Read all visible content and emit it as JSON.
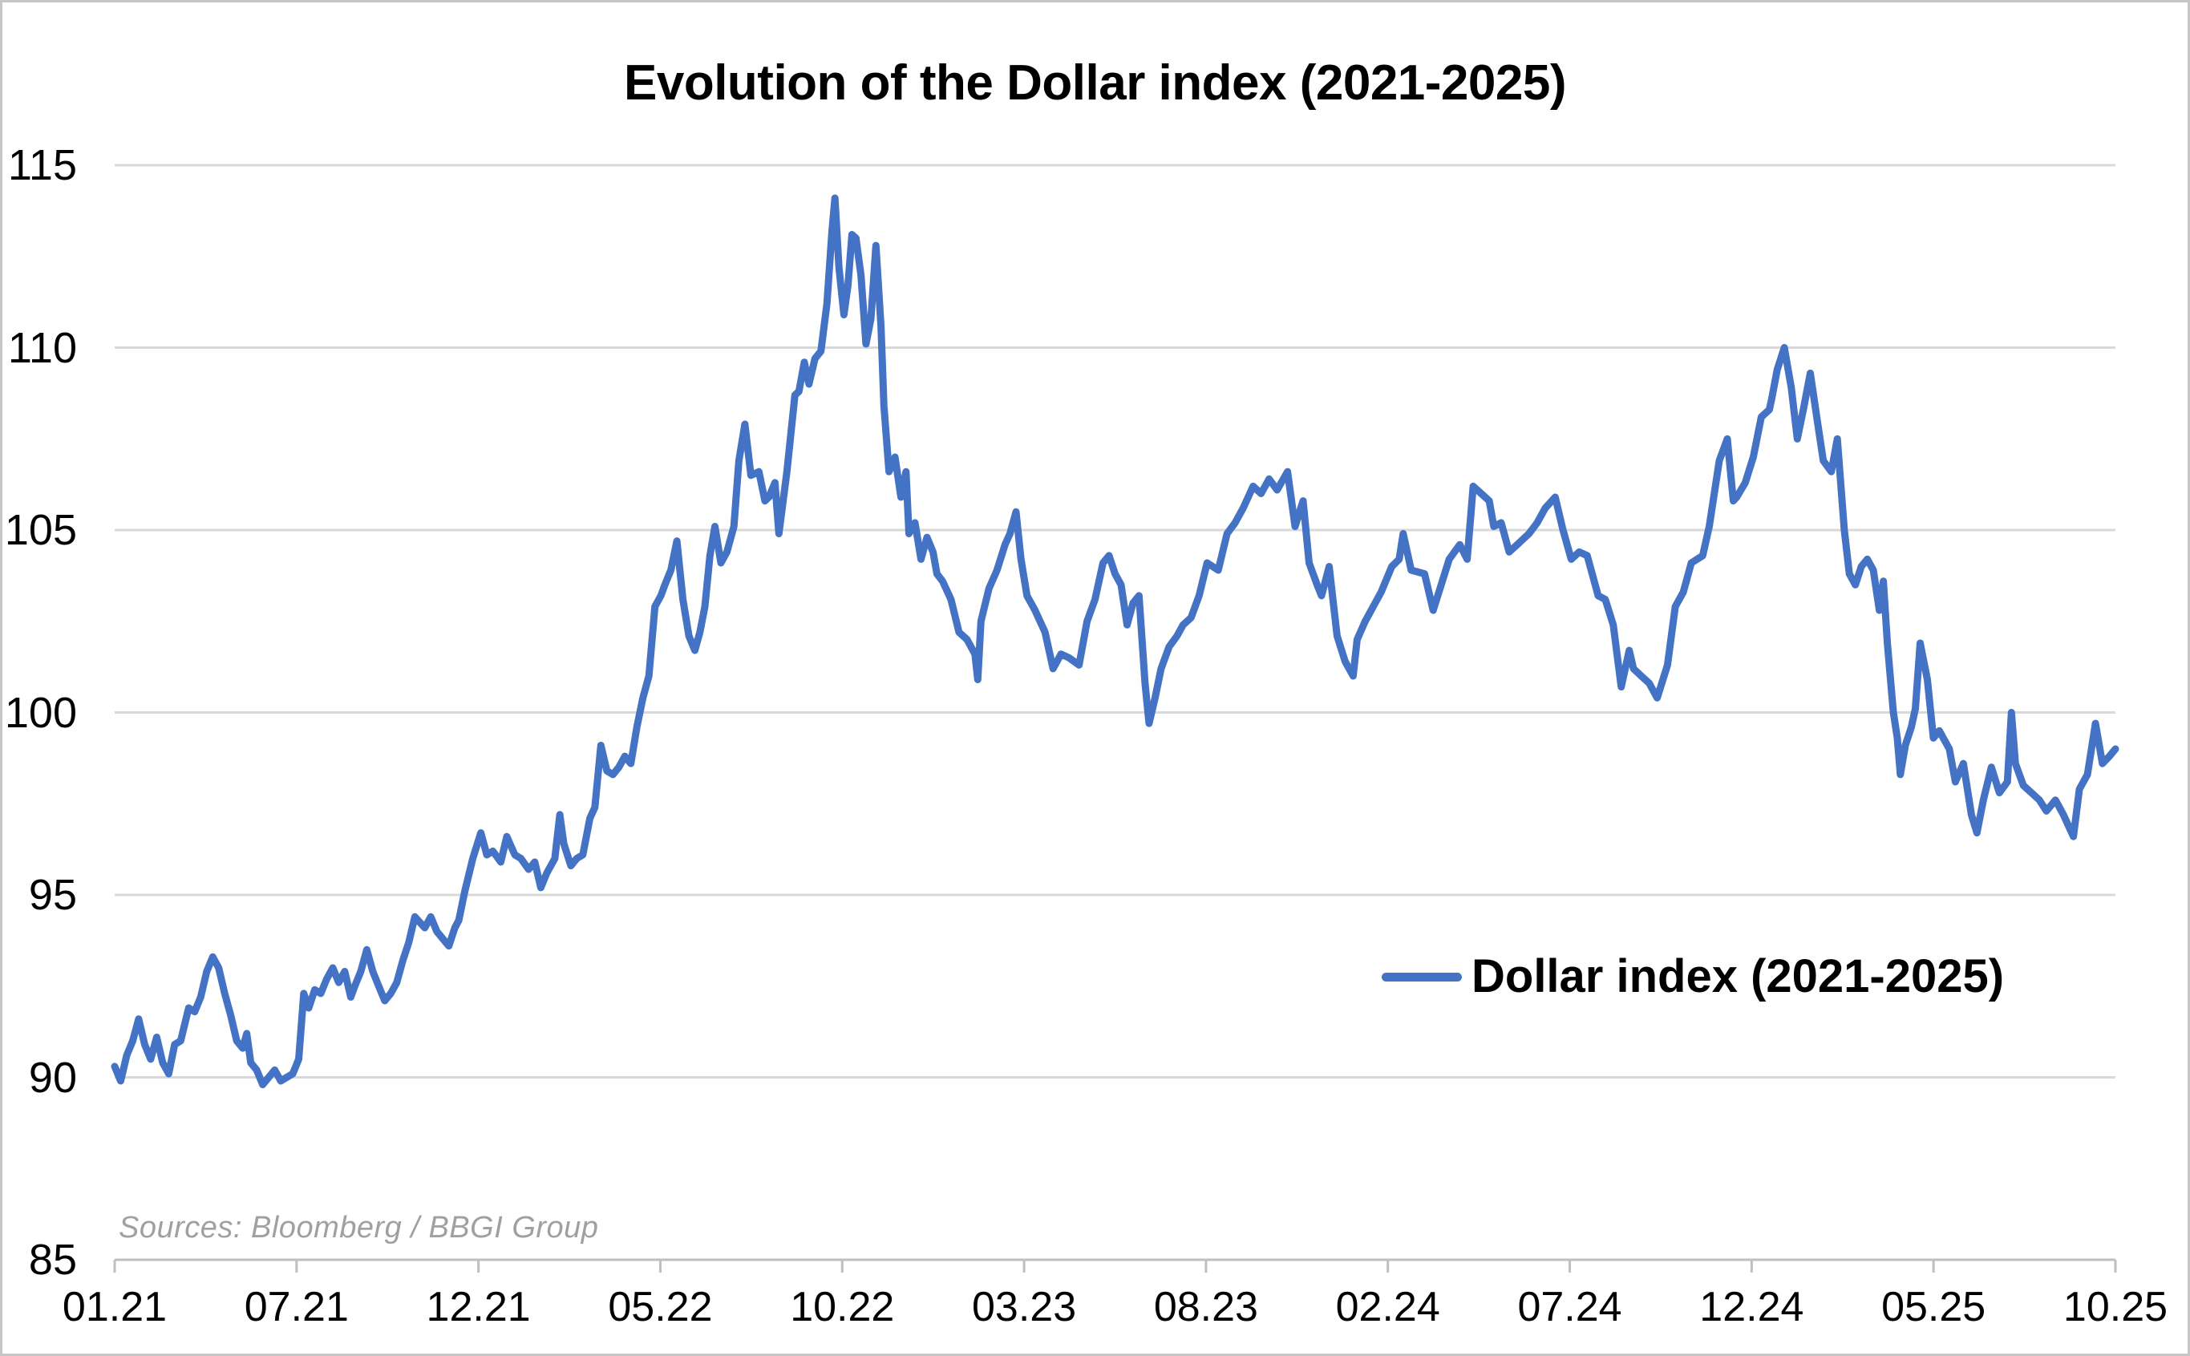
{
  "chart_data": {
    "type": "line",
    "title": "Evolution of the Dollar index (2021-2025)",
    "source_note": "Sources: Bloomberg / BBGI Group",
    "xlabel": "",
    "ylabel": "",
    "ylim": [
      85,
      115
    ],
    "y_ticks": [
      115,
      110,
      105,
      100,
      95,
      90,
      85
    ],
    "x_tick_labels": [
      "01.21",
      "07.21",
      "12.21",
      "05.22",
      "10.22",
      "03.23",
      "08.23",
      "02.24",
      "07.24",
      "12.24",
      "05.25",
      "10.25"
    ],
    "grid": "horizontal",
    "legend_position": "center-right",
    "legend_entries": [
      "Dollar index (2021-2025)"
    ],
    "colors": {
      "line": "#4472C4",
      "gridline": "#d9d9d9",
      "axis": "#bfbfbf",
      "text": "#000000",
      "source_text": "#a0a0a0"
    },
    "series": [
      {
        "name": "Dollar index (2021-2025)",
        "color": "#4472C4",
        "points_format": "[fraction_of_x_axis, index_value]",
        "points": [
          [
            0.0,
            90.3
          ],
          [
            0.003,
            89.9
          ],
          [
            0.006,
            90.6
          ],
          [
            0.009,
            91.0
          ],
          [
            0.012,
            91.6
          ],
          [
            0.015,
            90.9
          ],
          [
            0.018,
            90.5
          ],
          [
            0.021,
            91.1
          ],
          [
            0.024,
            90.4
          ],
          [
            0.027,
            90.1
          ],
          [
            0.03,
            90.9
          ],
          [
            0.033,
            91.0
          ],
          [
            0.037,
            91.9
          ],
          [
            0.04,
            91.8
          ],
          [
            0.043,
            92.2
          ],
          [
            0.046,
            92.9
          ],
          [
            0.049,
            93.3
          ],
          [
            0.052,
            93.0
          ],
          [
            0.055,
            92.3
          ],
          [
            0.058,
            91.7
          ],
          [
            0.061,
            91.0
          ],
          [
            0.064,
            90.8
          ],
          [
            0.066,
            91.2
          ],
          [
            0.068,
            90.4
          ],
          [
            0.071,
            90.2
          ],
          [
            0.074,
            89.8
          ],
          [
            0.077,
            90.0
          ],
          [
            0.08,
            90.2
          ],
          [
            0.083,
            89.9
          ],
          [
            0.086,
            90.0
          ],
          [
            0.089,
            90.1
          ],
          [
            0.092,
            90.5
          ],
          [
            0.0945,
            92.3
          ],
          [
            0.097,
            91.9
          ],
          [
            0.1,
            92.4
          ],
          [
            0.103,
            92.3
          ],
          [
            0.106,
            92.7
          ],
          [
            0.109,
            93.0
          ],
          [
            0.112,
            92.6
          ],
          [
            0.115,
            92.9
          ],
          [
            0.118,
            92.2
          ],
          [
            0.12,
            92.5
          ],
          [
            0.123,
            92.9
          ],
          [
            0.126,
            93.5
          ],
          [
            0.129,
            92.9
          ],
          [
            0.132,
            92.5
          ],
          [
            0.135,
            92.1
          ],
          [
            0.138,
            92.3
          ],
          [
            0.141,
            92.6
          ],
          [
            0.144,
            93.2
          ],
          [
            0.147,
            93.7
          ],
          [
            0.15,
            94.4
          ],
          [
            0.155,
            94.1
          ],
          [
            0.158,
            94.4
          ],
          [
            0.161,
            94.0
          ],
          [
            0.164,
            93.8
          ],
          [
            0.167,
            93.6
          ],
          [
            0.17,
            94.1
          ],
          [
            0.172,
            94.3
          ],
          [
            0.175,
            95.1
          ],
          [
            0.179,
            96.0
          ],
          [
            0.183,
            96.7
          ],
          [
            0.186,
            96.1
          ],
          [
            0.189,
            96.2
          ],
          [
            0.193,
            95.9
          ],
          [
            0.196,
            96.6
          ],
          [
            0.2,
            96.1
          ],
          [
            0.203,
            96.0
          ],
          [
            0.2069,
            95.7
          ],
          [
            0.21,
            95.9
          ],
          [
            0.213,
            95.2
          ],
          [
            0.216,
            95.6
          ],
          [
            0.22,
            96.0
          ],
          [
            0.2225,
            97.2
          ],
          [
            0.2245,
            96.4
          ],
          [
            0.228,
            95.8
          ],
          [
            0.231,
            96.0
          ],
          [
            0.234,
            96.1
          ],
          [
            0.2375,
            97.1
          ],
          [
            0.24,
            97.4
          ],
          [
            0.243,
            99.1
          ],
          [
            0.246,
            98.4
          ],
          [
            0.249,
            98.3
          ],
          [
            0.252,
            98.5
          ],
          [
            0.255,
            98.8
          ],
          [
            0.258,
            98.6
          ],
          [
            0.261,
            99.6
          ],
          [
            0.264,
            100.4
          ],
          [
            0.267,
            101.0
          ],
          [
            0.27,
            102.9
          ],
          [
            0.273,
            103.2
          ],
          [
            0.275,
            103.5
          ],
          [
            0.278,
            103.9
          ],
          [
            0.281,
            104.7
          ],
          [
            0.284,
            103.1
          ],
          [
            0.287,
            102.1
          ],
          [
            0.29,
            101.7
          ],
          [
            0.2925,
            102.2
          ],
          [
            0.295,
            102.9
          ],
          [
            0.2975,
            104.3
          ],
          [
            0.3,
            105.1
          ],
          [
            0.303,
            104.1
          ],
          [
            0.306,
            104.4
          ],
          [
            0.3095,
            105.1
          ],
          [
            0.312,
            106.9
          ],
          [
            0.315,
            107.9
          ],
          [
            0.318,
            106.5
          ],
          [
            0.322,
            106.6
          ],
          [
            0.325,
            105.8
          ],
          [
            0.327,
            105.9
          ],
          [
            0.33,
            106.3
          ],
          [
            0.332,
            104.9
          ],
          [
            0.336,
            106.6
          ],
          [
            0.34,
            108.7
          ],
          [
            0.342,
            108.8
          ],
          [
            0.3447,
            109.6
          ],
          [
            0.347,
            109.0
          ],
          [
            0.35,
            109.7
          ],
          [
            0.353,
            109.9
          ],
          [
            0.356,
            111.2
          ],
          [
            0.3585,
            113.2
          ],
          [
            0.36,
            114.1
          ],
          [
            0.362,
            112.2
          ],
          [
            0.3645,
            110.9
          ],
          [
            0.3665,
            111.7
          ],
          [
            0.3685,
            113.1
          ],
          [
            0.3705,
            113.0
          ],
          [
            0.373,
            112.0
          ],
          [
            0.3755,
            110.1
          ],
          [
            0.378,
            110.8
          ],
          [
            0.3805,
            112.8
          ],
          [
            0.383,
            110.6
          ],
          [
            0.3845,
            108.4
          ],
          [
            0.387,
            106.6
          ],
          [
            0.39,
            107.0
          ],
          [
            0.393,
            105.9
          ],
          [
            0.3955,
            106.6
          ],
          [
            0.397,
            104.9
          ],
          [
            0.4,
            105.2
          ],
          [
            0.403,
            104.2
          ],
          [
            0.406,
            104.8
          ],
          [
            0.409,
            104.4
          ],
          [
            0.411,
            103.8
          ],
          [
            0.4138,
            103.6
          ],
          [
            0.418,
            103.1
          ],
          [
            0.422,
            102.2
          ],
          [
            0.426,
            102.0
          ],
          [
            0.43,
            101.6
          ],
          [
            0.4314,
            100.9
          ],
          [
            0.433,
            102.5
          ],
          [
            0.437,
            103.4
          ],
          [
            0.441,
            103.9
          ],
          [
            0.445,
            104.6
          ],
          [
            0.4475,
            104.9
          ],
          [
            0.4505,
            105.5
          ],
          [
            0.453,
            104.2
          ],
          [
            0.456,
            103.2
          ],
          [
            0.46,
            102.8
          ],
          [
            0.465,
            102.2
          ],
          [
            0.469,
            101.2
          ],
          [
            0.473,
            101.6
          ],
          [
            0.477,
            101.5
          ],
          [
            0.482,
            101.3
          ],
          [
            0.486,
            102.5
          ],
          [
            0.49,
            103.1
          ],
          [
            0.494,
            104.1
          ],
          [
            0.497,
            104.3
          ],
          [
            0.5,
            103.8
          ],
          [
            0.503,
            103.5
          ],
          [
            0.506,
            102.4
          ],
          [
            0.509,
            103.0
          ],
          [
            0.512,
            103.2
          ],
          [
            0.515,
            100.8
          ],
          [
            0.517,
            99.7
          ],
          [
            0.52,
            100.4
          ],
          [
            0.523,
            101.2
          ],
          [
            0.527,
            101.8
          ],
          [
            0.531,
            102.1
          ],
          [
            0.534,
            102.4
          ],
          [
            0.538,
            102.6
          ],
          [
            0.542,
            103.2
          ],
          [
            0.546,
            104.1
          ],
          [
            0.5516,
            103.9
          ],
          [
            0.556,
            104.9
          ],
          [
            0.56,
            105.2
          ],
          [
            0.564,
            105.6
          ],
          [
            0.569,
            106.2
          ],
          [
            0.573,
            106.0
          ],
          [
            0.577,
            106.4
          ],
          [
            0.581,
            106.1
          ],
          [
            0.5862,
            106.6
          ],
          [
            0.59,
            105.1
          ],
          [
            0.594,
            105.8
          ],
          [
            0.597,
            104.1
          ],
          [
            0.601,
            103.5
          ],
          [
            0.6032,
            103.2
          ],
          [
            0.607,
            104.0
          ],
          [
            0.611,
            102.1
          ],
          [
            0.615,
            101.4
          ],
          [
            0.619,
            101.0
          ],
          [
            0.621,
            102.0
          ],
          [
            0.625,
            102.5
          ],
          [
            0.629,
            102.9
          ],
          [
            0.633,
            103.3
          ],
          [
            0.6383,
            104.0
          ],
          [
            0.642,
            104.2
          ],
          [
            0.644,
            104.9
          ],
          [
            0.648,
            103.9
          ],
          [
            0.6547,
            103.8
          ],
          [
            0.659,
            102.8
          ],
          [
            0.663,
            103.5
          ],
          [
            0.667,
            104.2
          ],
          [
            0.6723,
            104.6
          ],
          [
            0.676,
            104.2
          ],
          [
            0.679,
            106.2
          ],
          [
            0.683,
            106.0
          ],
          [
            0.687,
            105.8
          ],
          [
            0.6893,
            105.1
          ],
          [
            0.693,
            105.2
          ],
          [
            0.697,
            104.4
          ],
          [
            0.701,
            104.6
          ],
          [
            0.7069,
            104.9
          ],
          [
            0.711,
            105.2
          ],
          [
            0.715,
            105.6
          ],
          [
            0.72,
            105.9
          ],
          [
            0.7239,
            105.0
          ],
          [
            0.728,
            104.2
          ],
          [
            0.732,
            104.4
          ],
          [
            0.736,
            104.3
          ],
          [
            0.7415,
            103.2
          ],
          [
            0.745,
            103.1
          ],
          [
            0.749,
            102.4
          ],
          [
            0.753,
            100.7
          ],
          [
            0.757,
            101.7
          ],
          [
            0.7591,
            101.2
          ],
          [
            0.763,
            101.0
          ],
          [
            0.767,
            100.8
          ],
          [
            0.771,
            100.4
          ],
          [
            0.7761,
            101.3
          ],
          [
            0.78,
            102.9
          ],
          [
            0.784,
            103.3
          ],
          [
            0.788,
            104.1
          ],
          [
            0.7937,
            104.3
          ],
          [
            0.797,
            105.1
          ],
          [
            0.802,
            106.9
          ],
          [
            0.806,
            107.5
          ],
          [
            0.809,
            105.8
          ],
          [
            0.8107,
            105.9
          ],
          [
            0.815,
            106.3
          ],
          [
            0.819,
            107.0
          ],
          [
            0.823,
            108.1
          ],
          [
            0.827,
            108.3
          ],
          [
            0.8282,
            108.6
          ],
          [
            0.831,
            109.4
          ],
          [
            0.8345,
            110.0
          ],
          [
            0.838,
            108.9
          ],
          [
            0.841,
            107.5
          ],
          [
            0.844,
            108.3
          ],
          [
            0.8475,
            109.3
          ],
          [
            0.851,
            108.0
          ],
          [
            0.854,
            106.9
          ],
          [
            0.858,
            106.6
          ],
          [
            0.861,
            107.5
          ],
          [
            0.8645,
            105.0
          ],
          [
            0.867,
            103.8
          ],
          [
            0.87,
            103.5
          ],
          [
            0.873,
            104.0
          ],
          [
            0.876,
            104.2
          ],
          [
            0.879,
            103.9
          ],
          [
            0.882,
            102.8
          ],
          [
            0.884,
            103.6
          ],
          [
            0.886,
            101.9
          ],
          [
            0.889,
            100.0
          ],
          [
            0.891,
            99.3
          ],
          [
            0.8925,
            98.3
          ],
          [
            0.895,
            99.1
          ],
          [
            0.898,
            99.6
          ],
          [
            0.9,
            100.1
          ],
          [
            0.9024,
            101.9
          ],
          [
            0.906,
            100.9
          ],
          [
            0.909,
            99.3
          ],
          [
            0.912,
            99.5
          ],
          [
            0.914,
            99.3
          ],
          [
            0.917,
            99.0
          ],
          [
            0.92,
            98.1
          ],
          [
            0.924,
            98.6
          ],
          [
            0.928,
            97.2
          ],
          [
            0.9308,
            96.7
          ],
          [
            0.934,
            97.6
          ],
          [
            0.938,
            98.5
          ],
          [
            0.942,
            97.8
          ],
          [
            0.946,
            98.1
          ],
          [
            0.948,
            100.0
          ],
          [
            0.95,
            98.6
          ],
          [
            0.954,
            98.0
          ],
          [
            0.958,
            97.8
          ],
          [
            0.962,
            97.6
          ],
          [
            0.9655,
            97.3
          ],
          [
            0.97,
            97.6
          ],
          [
            0.974,
            97.2
          ],
          [
            0.979,
            96.6
          ],
          [
            0.982,
            97.9
          ],
          [
            0.986,
            98.3
          ],
          [
            0.99,
            99.7
          ],
          [
            0.9935,
            98.6
          ],
          [
            0.997,
            98.8
          ],
          [
            1.0,
            99.0
          ]
        ]
      }
    ]
  }
}
